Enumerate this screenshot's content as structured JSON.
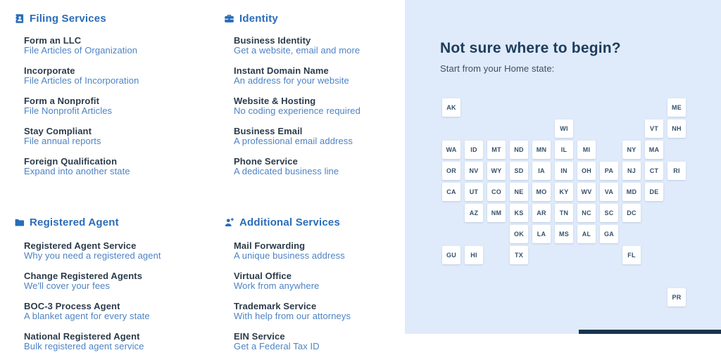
{
  "colors": {
    "accent_blue": "#2a6cb8",
    "item_title": "#2b3b4a",
    "item_subtitle": "#4d83c4",
    "panel_background": "#dfeafa",
    "heading_navy": "#1e3d5b",
    "tile_text": "#35506b",
    "bottom_bar": "#17334f"
  },
  "columns": [
    {
      "sections": [
        {
          "title": "Filing Services",
          "icon": "contact-card-icon",
          "items": [
            {
              "title": "Form an LLC",
              "subtitle": "File Articles of Organization"
            },
            {
              "title": "Incorporate",
              "subtitle": "File Articles of Incorporation"
            },
            {
              "title": "Form a Nonprofit",
              "subtitle": "File Nonprofit Articles"
            },
            {
              "title": "Stay Compliant",
              "subtitle": "File annual reports"
            },
            {
              "title": "Foreign Qualification",
              "subtitle": "Expand into another state"
            }
          ]
        },
        {
          "title": "Registered Agent",
          "icon": "folder-icon",
          "items": [
            {
              "title": "Registered Agent Service",
              "subtitle": "Why you need a registered agent"
            },
            {
              "title": "Change Registered Agents",
              "subtitle": "We'll cover your fees"
            },
            {
              "title": "BOC-3 Process Agent",
              "subtitle": "A blanket agent for every state"
            },
            {
              "title": "National Registered Agent",
              "subtitle": "Bulk registered agent service"
            }
          ]
        }
      ]
    },
    {
      "sections": [
        {
          "title": "Identity",
          "icon": "briefcase-icon",
          "items": [
            {
              "title": "Business Identity",
              "subtitle": "Get a website, email and more"
            },
            {
              "title": "Instant Domain Name",
              "subtitle": "An address for your website"
            },
            {
              "title": "Website & Hosting",
              "subtitle": "No coding experience required"
            },
            {
              "title": "Business Email",
              "subtitle": "A professional email address"
            },
            {
              "title": "Phone Service",
              "subtitle": "A dedicated business line"
            }
          ]
        },
        {
          "title": "Additional Services",
          "icon": "person-plus-icon",
          "items": [
            {
              "title": "Mail Forwarding",
              "subtitle": "A unique business address"
            },
            {
              "title": "Virtual Office",
              "subtitle": "Work from anywhere"
            },
            {
              "title": "Trademark Service",
              "subtitle": "With help from our attorneys"
            },
            {
              "title": "EIN Service",
              "subtitle": "Get a Federal Tax ID"
            }
          ]
        }
      ]
    }
  ],
  "state_panel": {
    "heading": "Not sure where to begin?",
    "subheading": "Start from your Home state:",
    "states": [
      {
        "abbr": "AK",
        "row": 0,
        "col": 0
      },
      {
        "abbr": "ME",
        "row": 0,
        "col": 10
      },
      {
        "abbr": "WI",
        "row": 1,
        "col": 5
      },
      {
        "abbr": "VT",
        "row": 1,
        "col": 9
      },
      {
        "abbr": "NH",
        "row": 1,
        "col": 10
      },
      {
        "abbr": "WA",
        "row": 2,
        "col": 0
      },
      {
        "abbr": "ID",
        "row": 2,
        "col": 1
      },
      {
        "abbr": "MT",
        "row": 2,
        "col": 2
      },
      {
        "abbr": "ND",
        "row": 2,
        "col": 3
      },
      {
        "abbr": "MN",
        "row": 2,
        "col": 4
      },
      {
        "abbr": "IL",
        "row": 2,
        "col": 5
      },
      {
        "abbr": "MI",
        "row": 2,
        "col": 6
      },
      {
        "abbr": "NY",
        "row": 2,
        "col": 8
      },
      {
        "abbr": "MA",
        "row": 2,
        "col": 9
      },
      {
        "abbr": "OR",
        "row": 3,
        "col": 0
      },
      {
        "abbr": "NV",
        "row": 3,
        "col": 1
      },
      {
        "abbr": "WY",
        "row": 3,
        "col": 2
      },
      {
        "abbr": "SD",
        "row": 3,
        "col": 3
      },
      {
        "abbr": "IA",
        "row": 3,
        "col": 4
      },
      {
        "abbr": "IN",
        "row": 3,
        "col": 5
      },
      {
        "abbr": "OH",
        "row": 3,
        "col": 6
      },
      {
        "abbr": "PA",
        "row": 3,
        "col": 7
      },
      {
        "abbr": "NJ",
        "row": 3,
        "col": 8
      },
      {
        "abbr": "CT",
        "row": 3,
        "col": 9
      },
      {
        "abbr": "RI",
        "row": 3,
        "col": 10
      },
      {
        "abbr": "CA",
        "row": 4,
        "col": 0
      },
      {
        "abbr": "UT",
        "row": 4,
        "col": 1
      },
      {
        "abbr": "CO",
        "row": 4,
        "col": 2
      },
      {
        "abbr": "NE",
        "row": 4,
        "col": 3
      },
      {
        "abbr": "MO",
        "row": 4,
        "col": 4
      },
      {
        "abbr": "KY",
        "row": 4,
        "col": 5
      },
      {
        "abbr": "WV",
        "row": 4,
        "col": 6
      },
      {
        "abbr": "VA",
        "row": 4,
        "col": 7
      },
      {
        "abbr": "MD",
        "row": 4,
        "col": 8
      },
      {
        "abbr": "DE",
        "row": 4,
        "col": 9
      },
      {
        "abbr": "AZ",
        "row": 5,
        "col": 1
      },
      {
        "abbr": "NM",
        "row": 5,
        "col": 2
      },
      {
        "abbr": "KS",
        "row": 5,
        "col": 3
      },
      {
        "abbr": "AR",
        "row": 5,
        "col": 4
      },
      {
        "abbr": "TN",
        "row": 5,
        "col": 5
      },
      {
        "abbr": "NC",
        "row": 5,
        "col": 6
      },
      {
        "abbr": "SC",
        "row": 5,
        "col": 7
      },
      {
        "abbr": "DC",
        "row": 5,
        "col": 8
      },
      {
        "abbr": "OK",
        "row": 6,
        "col": 3
      },
      {
        "abbr": "LA",
        "row": 6,
        "col": 4
      },
      {
        "abbr": "MS",
        "row": 6,
        "col": 5
      },
      {
        "abbr": "AL",
        "row": 6,
        "col": 6
      },
      {
        "abbr": "GA",
        "row": 6,
        "col": 7
      },
      {
        "abbr": "GU",
        "row": 7,
        "col": 0
      },
      {
        "abbr": "HI",
        "row": 7,
        "col": 1
      },
      {
        "abbr": "TX",
        "row": 7,
        "col": 3
      },
      {
        "abbr": "FL",
        "row": 7,
        "col": 8
      },
      {
        "abbr": "PR",
        "row": 9,
        "col": 10
      }
    ]
  }
}
